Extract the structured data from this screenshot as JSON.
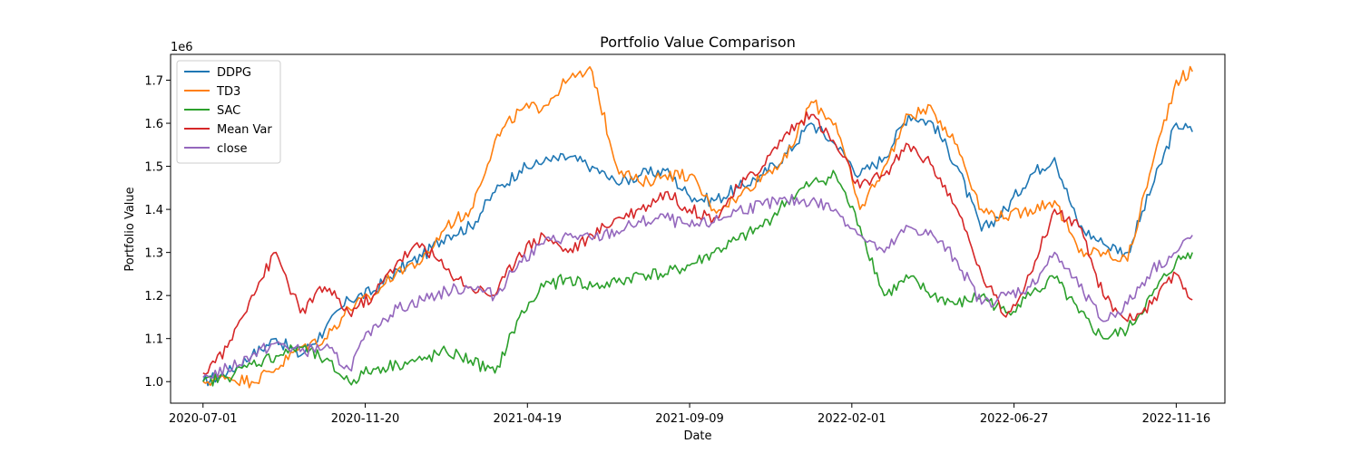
{
  "chart_data": {
    "type": "line",
    "title": "Portfolio Value Comparison",
    "xlabel": "Date",
    "ylabel": "Portfolio Value",
    "y_offset_label": "1e6",
    "x_ticks": [
      "2020-07-01",
      "2020-11-20",
      "2021-04-19",
      "2021-09-09",
      "2022-02-01",
      "2022-06-27",
      "2022-11-16"
    ],
    "y_ticks": [
      "1.0",
      "1.1",
      "1.2",
      "1.3",
      "1.4",
      "1.5",
      "1.6",
      "1.7"
    ],
    "ylim": [
      0.95,
      1.76
    ],
    "xlim": [
      -20,
      630
    ],
    "legend_position": "top-left",
    "grid": false,
    "x_tick_positions": [
      0,
      100,
      200,
      300,
      400,
      500,
      600
    ],
    "x": [
      0,
      15,
      30,
      45,
      60,
      75,
      90,
      105,
      120,
      135,
      150,
      165,
      180,
      195,
      210,
      225,
      240,
      255,
      270,
      285,
      300,
      315,
      330,
      345,
      360,
      375,
      390,
      405,
      420,
      435,
      450,
      465,
      480,
      495,
      510,
      525,
      540,
      555,
      570,
      585,
      600,
      610
    ],
    "series": [
      {
        "name": "DDPG",
        "color": "#1f77b4",
        "values": [
          1.0,
          1.02,
          1.06,
          1.1,
          1.06,
          1.12,
          1.19,
          1.21,
          1.26,
          1.29,
          1.34,
          1.36,
          1.44,
          1.49,
          1.51,
          1.52,
          1.5,
          1.46,
          1.48,
          1.49,
          1.43,
          1.42,
          1.45,
          1.48,
          1.53,
          1.6,
          1.55,
          1.48,
          1.52,
          1.62,
          1.6,
          1.5,
          1.35,
          1.4,
          1.48,
          1.52,
          1.36,
          1.32,
          1.3,
          1.45,
          1.6,
          1.58
        ]
      },
      {
        "name": "TD3",
        "color": "#ff7f0e",
        "values": [
          1.0,
          1.01,
          1.0,
          1.03,
          1.08,
          1.1,
          1.17,
          1.2,
          1.26,
          1.28,
          1.36,
          1.4,
          1.56,
          1.63,
          1.64,
          1.7,
          1.72,
          1.5,
          1.46,
          1.48,
          1.48,
          1.4,
          1.43,
          1.48,
          1.52,
          1.65,
          1.6,
          1.4,
          1.5,
          1.62,
          1.63,
          1.55,
          1.4,
          1.38,
          1.4,
          1.42,
          1.3,
          1.3,
          1.28,
          1.5,
          1.7,
          1.72
        ]
      },
      {
        "name": "SAC",
        "color": "#2ca02c",
        "values": [
          1.0,
          1.01,
          1.04,
          1.06,
          1.08,
          1.05,
          1.0,
          1.03,
          1.04,
          1.05,
          1.07,
          1.05,
          1.02,
          1.15,
          1.22,
          1.24,
          1.22,
          1.23,
          1.25,
          1.25,
          1.27,
          1.3,
          1.33,
          1.36,
          1.42,
          1.46,
          1.48,
          1.36,
          1.2,
          1.24,
          1.2,
          1.18,
          1.2,
          1.16,
          1.2,
          1.24,
          1.16,
          1.1,
          1.12,
          1.2,
          1.28,
          1.3
        ]
      },
      {
        "name": "Mean Var",
        "color": "#d62728",
        "values": [
          1.02,
          1.08,
          1.2,
          1.3,
          1.16,
          1.22,
          1.16,
          1.2,
          1.28,
          1.32,
          1.26,
          1.22,
          1.2,
          1.3,
          1.34,
          1.3,
          1.34,
          1.38,
          1.4,
          1.44,
          1.4,
          1.38,
          1.45,
          1.5,
          1.58,
          1.62,
          1.55,
          1.45,
          1.48,
          1.55,
          1.5,
          1.4,
          1.25,
          1.15,
          1.25,
          1.4,
          1.36,
          1.2,
          1.14,
          1.18,
          1.25,
          1.19
        ]
      },
      {
        "name": "close",
        "color": "#9467bd",
        "values": [
          1.01,
          1.03,
          1.06,
          1.09,
          1.07,
          1.08,
          1.03,
          1.13,
          1.17,
          1.19,
          1.21,
          1.22,
          1.2,
          1.28,
          1.32,
          1.34,
          1.33,
          1.35,
          1.37,
          1.38,
          1.36,
          1.37,
          1.4,
          1.41,
          1.42,
          1.42,
          1.4,
          1.34,
          1.3,
          1.36,
          1.34,
          1.28,
          1.18,
          1.2,
          1.22,
          1.3,
          1.22,
          1.14,
          1.18,
          1.26,
          1.3,
          1.34
        ]
      }
    ]
  }
}
